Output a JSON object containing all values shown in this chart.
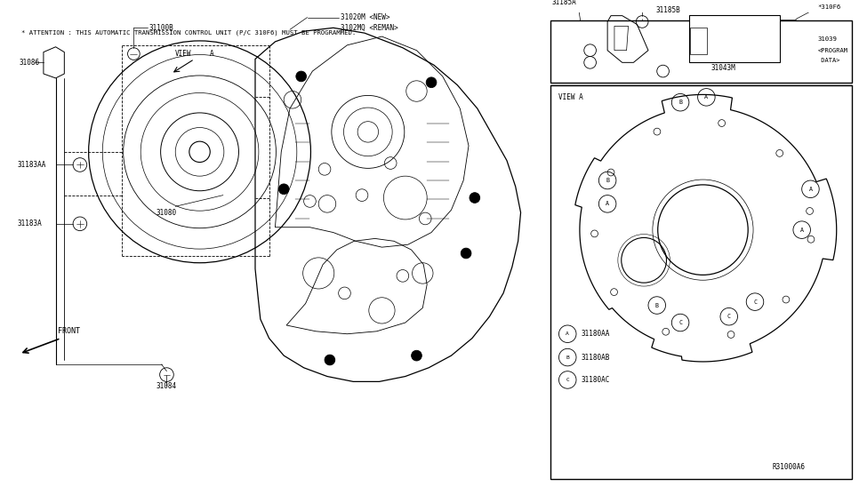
{
  "bg_color": "#ffffff",
  "line_color": "#000000",
  "attention_text": "* ATTENTION : THIS AUTOMATIC TRANSMISSION CONTROL UNIT (P/C 310F6) MUST BE PROGRAMMED.",
  "figure_width": 9.75,
  "figure_height": 5.66,
  "xlim": [
    0,
    9.75
  ],
  "ylim": [
    0,
    5.66
  ]
}
